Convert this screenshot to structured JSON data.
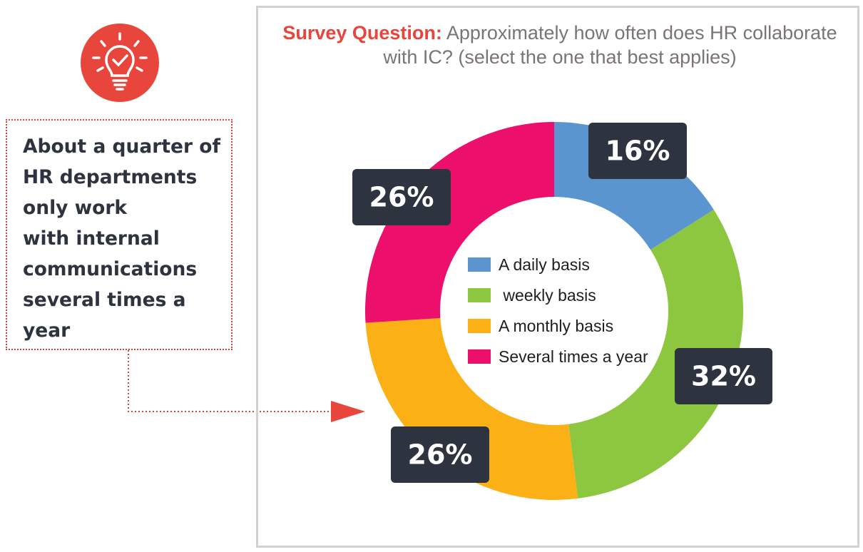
{
  "callout": {
    "text": "About a quarter of\nHR departments\nonly work\nwith internal\ncommunications\nseveral times a\nyear",
    "icon": "lightbulb-check-icon",
    "border_color": "#d9443c"
  },
  "accent_color": "#e8453c",
  "question": {
    "label": "Survey Question:",
    "text": " Approximately how often does HR collaborate with IC? (select the one that best applies)"
  },
  "chart_data": {
    "type": "pie",
    "donut": true,
    "slices": [
      {
        "label": "A daily basis",
        "value": 16,
        "display": "16%",
        "color": "#5b95d0"
      },
      {
        "label": " weekly basis",
        "value": 32,
        "display": "32%",
        "color": "#8dc63f"
      },
      {
        "label": "A monthly basis",
        "value": 26,
        "display": "26%",
        "color": "#fbb116"
      },
      {
        "label": "Several times a year",
        "value": 26,
        "display": "26%",
        "color": "#ec0f6b"
      }
    ],
    "legend_position": "center",
    "label_box_color": "#2d3440"
  }
}
